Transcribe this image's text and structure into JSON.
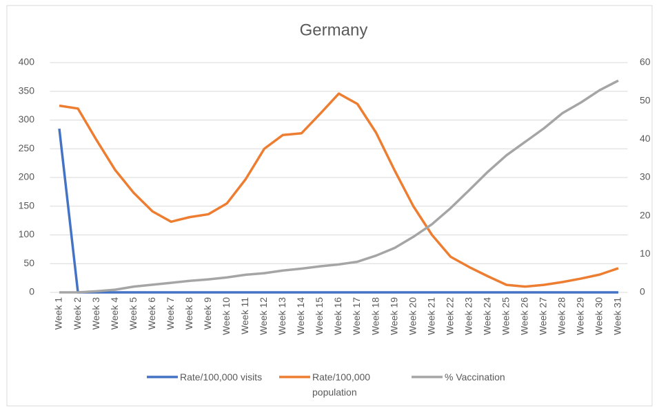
{
  "chart_data": {
    "type": "line",
    "title": "Germany",
    "categories": [
      "Week 1",
      "Week 2",
      "Week 3",
      "Week 4",
      "Week 5",
      "Week 6",
      "Week 7",
      "Week 8",
      "Week 9",
      "Week 10",
      "Week 11",
      "Week 12",
      "Week 13",
      "Week 14",
      "Week 15",
      "Week 16",
      "Week 17",
      "Week 18",
      "Week 19",
      "Week 20",
      "Week 21",
      "Week 22",
      "Week 23",
      "Week 24",
      "Week 25",
      "Week 26",
      "Week 27",
      "Week 28",
      "Week 29",
      "Week 30",
      "Week 31"
    ],
    "series": [
      {
        "name": "Rate/100,000 visits",
        "color": "#4472c4",
        "values": [
          285,
          0,
          0,
          0,
          0,
          0,
          0,
          0,
          0,
          0,
          0,
          0,
          0,
          0,
          0,
          0,
          0,
          0,
          0,
          0,
          0,
          0,
          0,
          0,
          0,
          0,
          0,
          0,
          0,
          0,
          0
        ]
      },
      {
        "name": "Rate/100,000 population",
        "color": "#ed7d31",
        "values": [
          325,
          320,
          265,
          213,
          173,
          141,
          123,
          131,
          136,
          155,
          197,
          250,
          274,
          277,
          311,
          346,
          328,
          278,
          212,
          150,
          100,
          62,
          44,
          28,
          13,
          10,
          13,
          18,
          24,
          31,
          42
        ]
      },
      {
        "name": "% Vaccination",
        "color": "#a5a5a5",
        "axis": "y2",
        "values": [
          0,
          0,
          0.3,
          0.7,
          1.5,
          2,
          2.5,
          3,
          3.4,
          3.9,
          4.6,
          5,
          5.7,
          6.2,
          6.8,
          7.3,
          8,
          9.6,
          11.6,
          14.5,
          17.8,
          22,
          26.7,
          31.5,
          35.8,
          39.3,
          42.8,
          46.8,
          49.6,
          52.8,
          55.3
        ]
      }
    ],
    "ylim": [
      0,
      400
    ],
    "yticks": [
      0,
      50,
      100,
      150,
      200,
      250,
      300,
      350,
      400
    ],
    "y2lim": [
      0,
      60
    ],
    "y2ticks": [
      0,
      10,
      20,
      30,
      40,
      50,
      60
    ],
    "grid": true,
    "legend": "bottom"
  }
}
